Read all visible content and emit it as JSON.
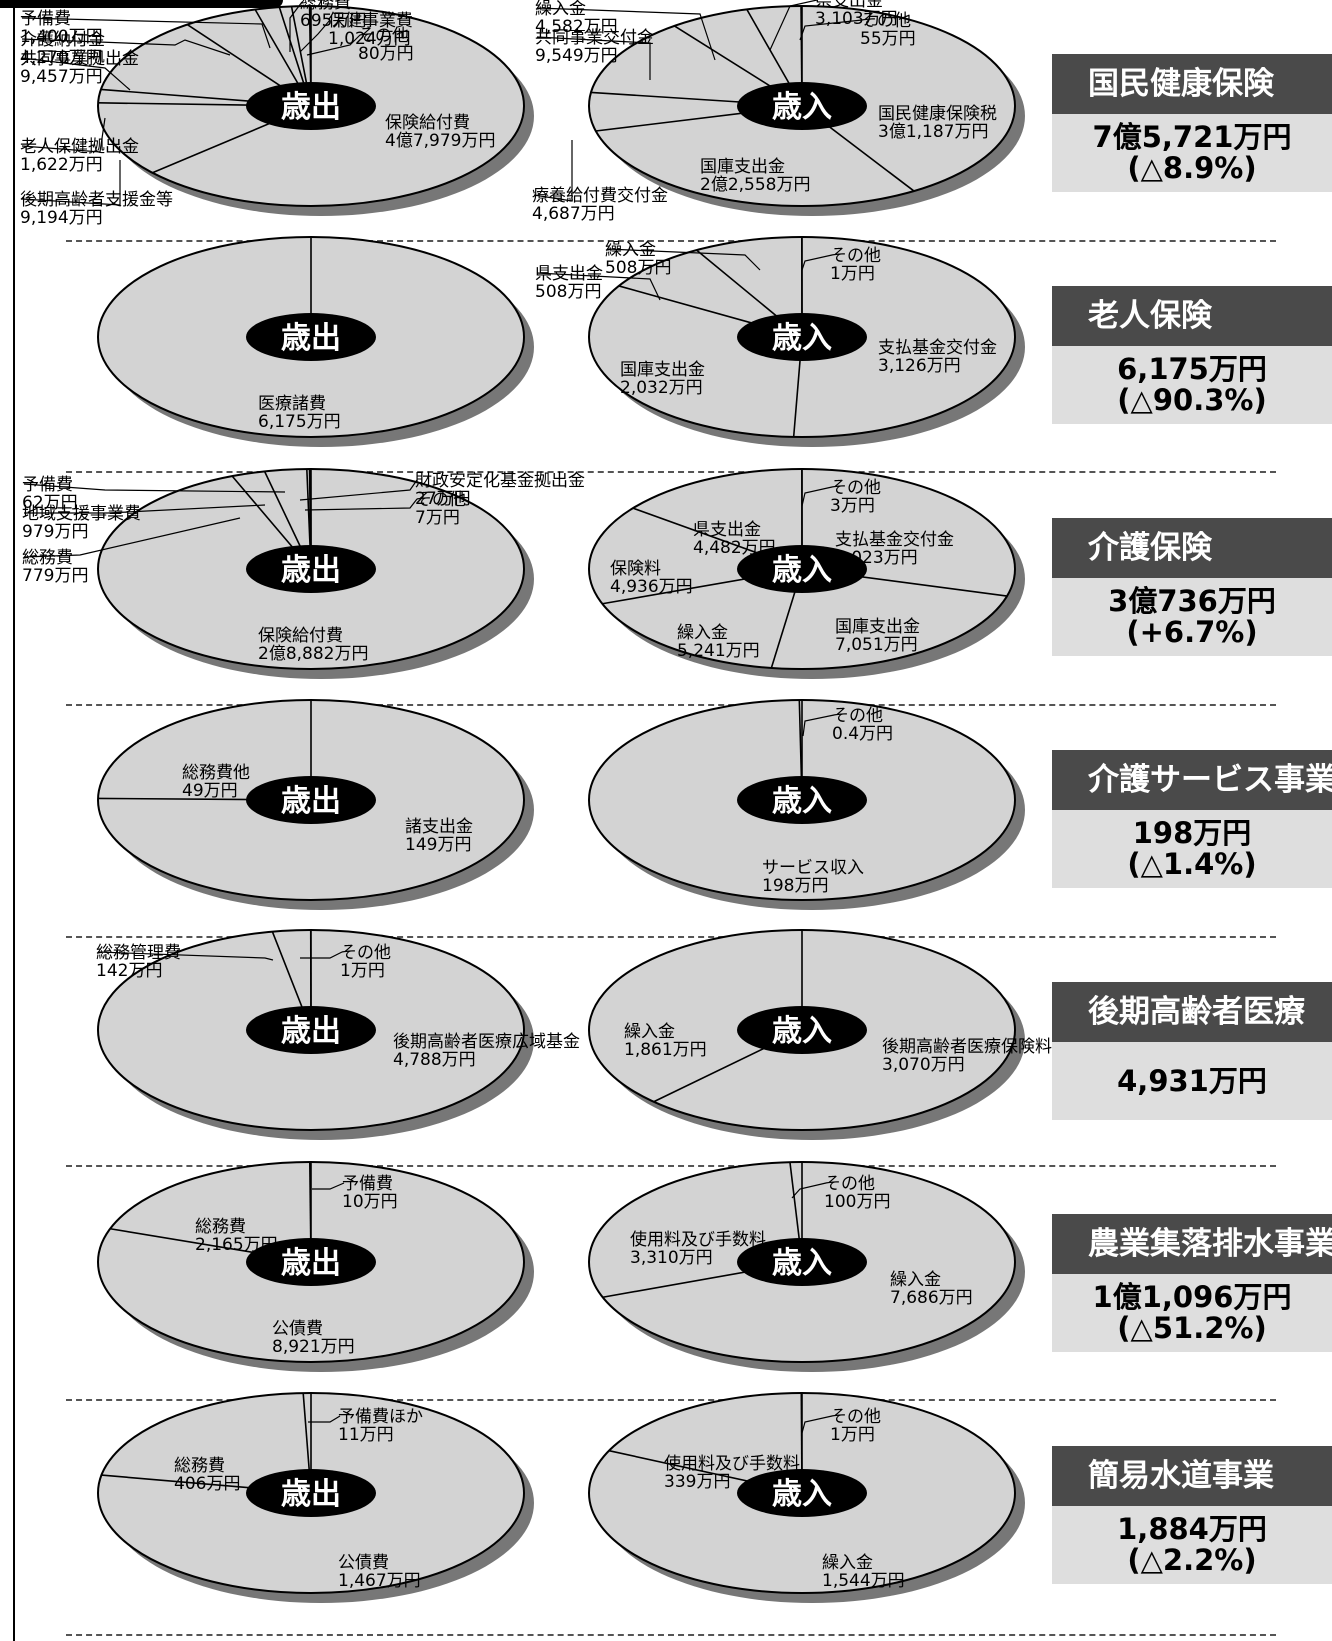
{
  "chart_data": [
    {
      "type": "pie",
      "title": "国民健康保険",
      "total": "7億5,721万円",
      "change": "(△8.9%)",
      "expenditure": {
        "label": "歳出",
        "slices": [
          {
            "name": "保険給付費",
            "amount_text": "4億7,979万円",
            "value": 47979
          },
          {
            "name": "後期高齢者支援金等",
            "amount_text": "9,194万円",
            "value": 9194
          },
          {
            "name": "老人保健拠出金",
            "amount_text": "1,622万円",
            "value": 1622
          },
          {
            "name": "共同事業拠出金",
            "amount_text": "9,457万円",
            "value": 9457
          },
          {
            "name": "介護納付金",
            "amount_text": "4,270万円",
            "value": 4270
          },
          {
            "name": "予備費",
            "amount_text": "1,400万円",
            "value": 1400
          },
          {
            "name": "総務費",
            "amount_text": "695万円",
            "value": 695
          },
          {
            "name": "保健事業費",
            "amount_text": "1,024万円",
            "value": 1024
          },
          {
            "name": "その他",
            "amount_text": "80万円",
            "value": 80
          }
        ]
      },
      "revenue": {
        "label": "歳入",
        "slices": [
          {
            "name": "国民健康保険税",
            "amount_text": "3億1,187万円",
            "value": 31187
          },
          {
            "name": "国庫支出金",
            "amount_text": "2億2,558万円",
            "value": 22558
          },
          {
            "name": "療養給付費交付金",
            "amount_text": "4,687万円",
            "value": 4687
          },
          {
            "name": "共同事業交付金",
            "amount_text": "9,549万円",
            "value": 9549
          },
          {
            "name": "繰入金",
            "amount_text": "4,582万円",
            "value": 4582
          },
          {
            "name": "県支出金",
            "amount_text": "3,103万円",
            "value": 3103
          },
          {
            "name": "その他",
            "amount_text": "55万円",
            "value": 55
          }
        ]
      }
    },
    {
      "type": "pie",
      "title": "老人保険",
      "total": "6,175万円",
      "change": "(△90.3%)",
      "expenditure": {
        "label": "歳出",
        "slices": [
          {
            "name": "医療諸費",
            "amount_text": "6,175万円",
            "value": 6175
          }
        ]
      },
      "revenue": {
        "label": "歳入",
        "slices": [
          {
            "name": "支払基金交付金",
            "amount_text": "3,126万円",
            "value": 3126
          },
          {
            "name": "国庫支出金",
            "amount_text": "2,032万円",
            "value": 2032
          },
          {
            "name": "県支出金",
            "amount_text": "508万円",
            "value": 508
          },
          {
            "name": "繰入金",
            "amount_text": "508万円",
            "value": 508
          },
          {
            "name": "その他",
            "amount_text": "1万円",
            "value": 1
          }
        ]
      }
    },
    {
      "type": "pie",
      "title": "介護保険",
      "total": "3億736万円",
      "change": "(+6.7%)",
      "expenditure": {
        "label": "歳出",
        "slices": [
          {
            "name": "保険給付費",
            "amount_text": "2億8,882万円",
            "value": 28882
          },
          {
            "name": "総務費",
            "amount_text": "779万円",
            "value": 779
          },
          {
            "name": "地域支援事業費",
            "amount_text": "979万円",
            "value": 979
          },
          {
            "name": "予備費",
            "amount_text": "62万円",
            "value": 62
          },
          {
            "name": "財政安定化基金拠出金",
            "amount_text": "27万円",
            "value": 27
          },
          {
            "name": "その他",
            "amount_text": "7万円",
            "value": 7
          }
        ]
      },
      "revenue": {
        "label": "歳入",
        "slices": [
          {
            "name": "支払基金交付金",
            "amount_text": "9,023万円",
            "value": 9023
          },
          {
            "name": "国庫支出金",
            "amount_text": "7,051万円",
            "value": 7051
          },
          {
            "name": "繰入金",
            "amount_text": "5,241万円",
            "value": 5241
          },
          {
            "name": "保険料",
            "amount_text": "4,936万円",
            "value": 4936
          },
          {
            "name": "県支出金",
            "amount_text": "4,482万円",
            "value": 4482
          },
          {
            "name": "その他",
            "amount_text": "3万円",
            "value": 3
          }
        ]
      }
    },
    {
      "type": "pie",
      "title": "介護サービス事業",
      "total": "198万円",
      "change": "(△1.4%)",
      "expenditure": {
        "label": "歳出",
        "slices": [
          {
            "name": "諸支出金",
            "amount_text": "149万円",
            "value": 149
          },
          {
            "name": "総務費他",
            "amount_text": "49万円",
            "value": 49
          }
        ]
      },
      "revenue": {
        "label": "歳入",
        "slices": [
          {
            "name": "サービス収入",
            "amount_text": "198万円",
            "value": 198
          },
          {
            "name": "その他",
            "amount_text": "0.4万円",
            "value": 0.4
          }
        ]
      }
    },
    {
      "type": "pie",
      "title": "後期高齢者医療",
      "total": "4,931万円",
      "change": "",
      "expenditure": {
        "label": "歳出",
        "slices": [
          {
            "name": "後期高齢者医療広域基金",
            "amount_text": "4,788万円",
            "value": 4788
          },
          {
            "name": "総務管理費",
            "amount_text": "142万円",
            "value": 142
          },
          {
            "name": "その他",
            "amount_text": "1万円",
            "value": 1
          }
        ]
      },
      "revenue": {
        "label": "歳入",
        "slices": [
          {
            "name": "後期高齢者医療保険料",
            "amount_text": "3,070万円",
            "value": 3070
          },
          {
            "name": "繰入金",
            "amount_text": "1,861万円",
            "value": 1861
          }
        ]
      }
    },
    {
      "type": "pie",
      "title": "農業集落排水事業",
      "total": "1億1,096万円",
      "change": "(△51.2%)",
      "expenditure": {
        "label": "歳出",
        "slices": [
          {
            "name": "公債費",
            "amount_text": "8,921万円",
            "value": 8921
          },
          {
            "name": "総務費",
            "amount_text": "2,165万円",
            "value": 2165
          },
          {
            "name": "予備費",
            "amount_text": "10万円",
            "value": 10
          }
        ]
      },
      "revenue": {
        "label": "歳入",
        "slices": [
          {
            "name": "繰入金",
            "amount_text": "7,686万円",
            "value": 7686
          },
          {
            "name": "使用料及び手数料",
            "amount_text": "3,310万円",
            "value": 3310
          },
          {
            "name": "その他",
            "amount_text": "100万円",
            "value": 100
          }
        ]
      }
    },
    {
      "type": "pie",
      "title": "簡易水道事業",
      "total": "1,884万円",
      "change": "(△2.2%)",
      "expenditure": {
        "label": "歳出",
        "slices": [
          {
            "name": "公債費",
            "amount_text": "1,467万円",
            "value": 1467
          },
          {
            "name": "総務費",
            "amount_text": "406万円",
            "value": 406
          },
          {
            "name": "予備費ほか",
            "amount_text": "11万円",
            "value": 11
          }
        ]
      },
      "revenue": {
        "label": "歳入",
        "slices": [
          {
            "name": "繰入金",
            "amount_text": "1,544万円",
            "value": 1544
          },
          {
            "name": "使用料及び手数料",
            "amount_text": "339万円",
            "value": 339
          },
          {
            "name": "その他",
            "amount_text": "1万円",
            "value": 1
          }
        ]
      }
    }
  ],
  "colors": {
    "pie_fill": "#d3d3d3",
    "pie_edge": "#000000",
    "pie_shadow": "#777777",
    "center_badge": "#000000",
    "title_bar": "#4a4a4a",
    "value_box": "#dedede"
  }
}
